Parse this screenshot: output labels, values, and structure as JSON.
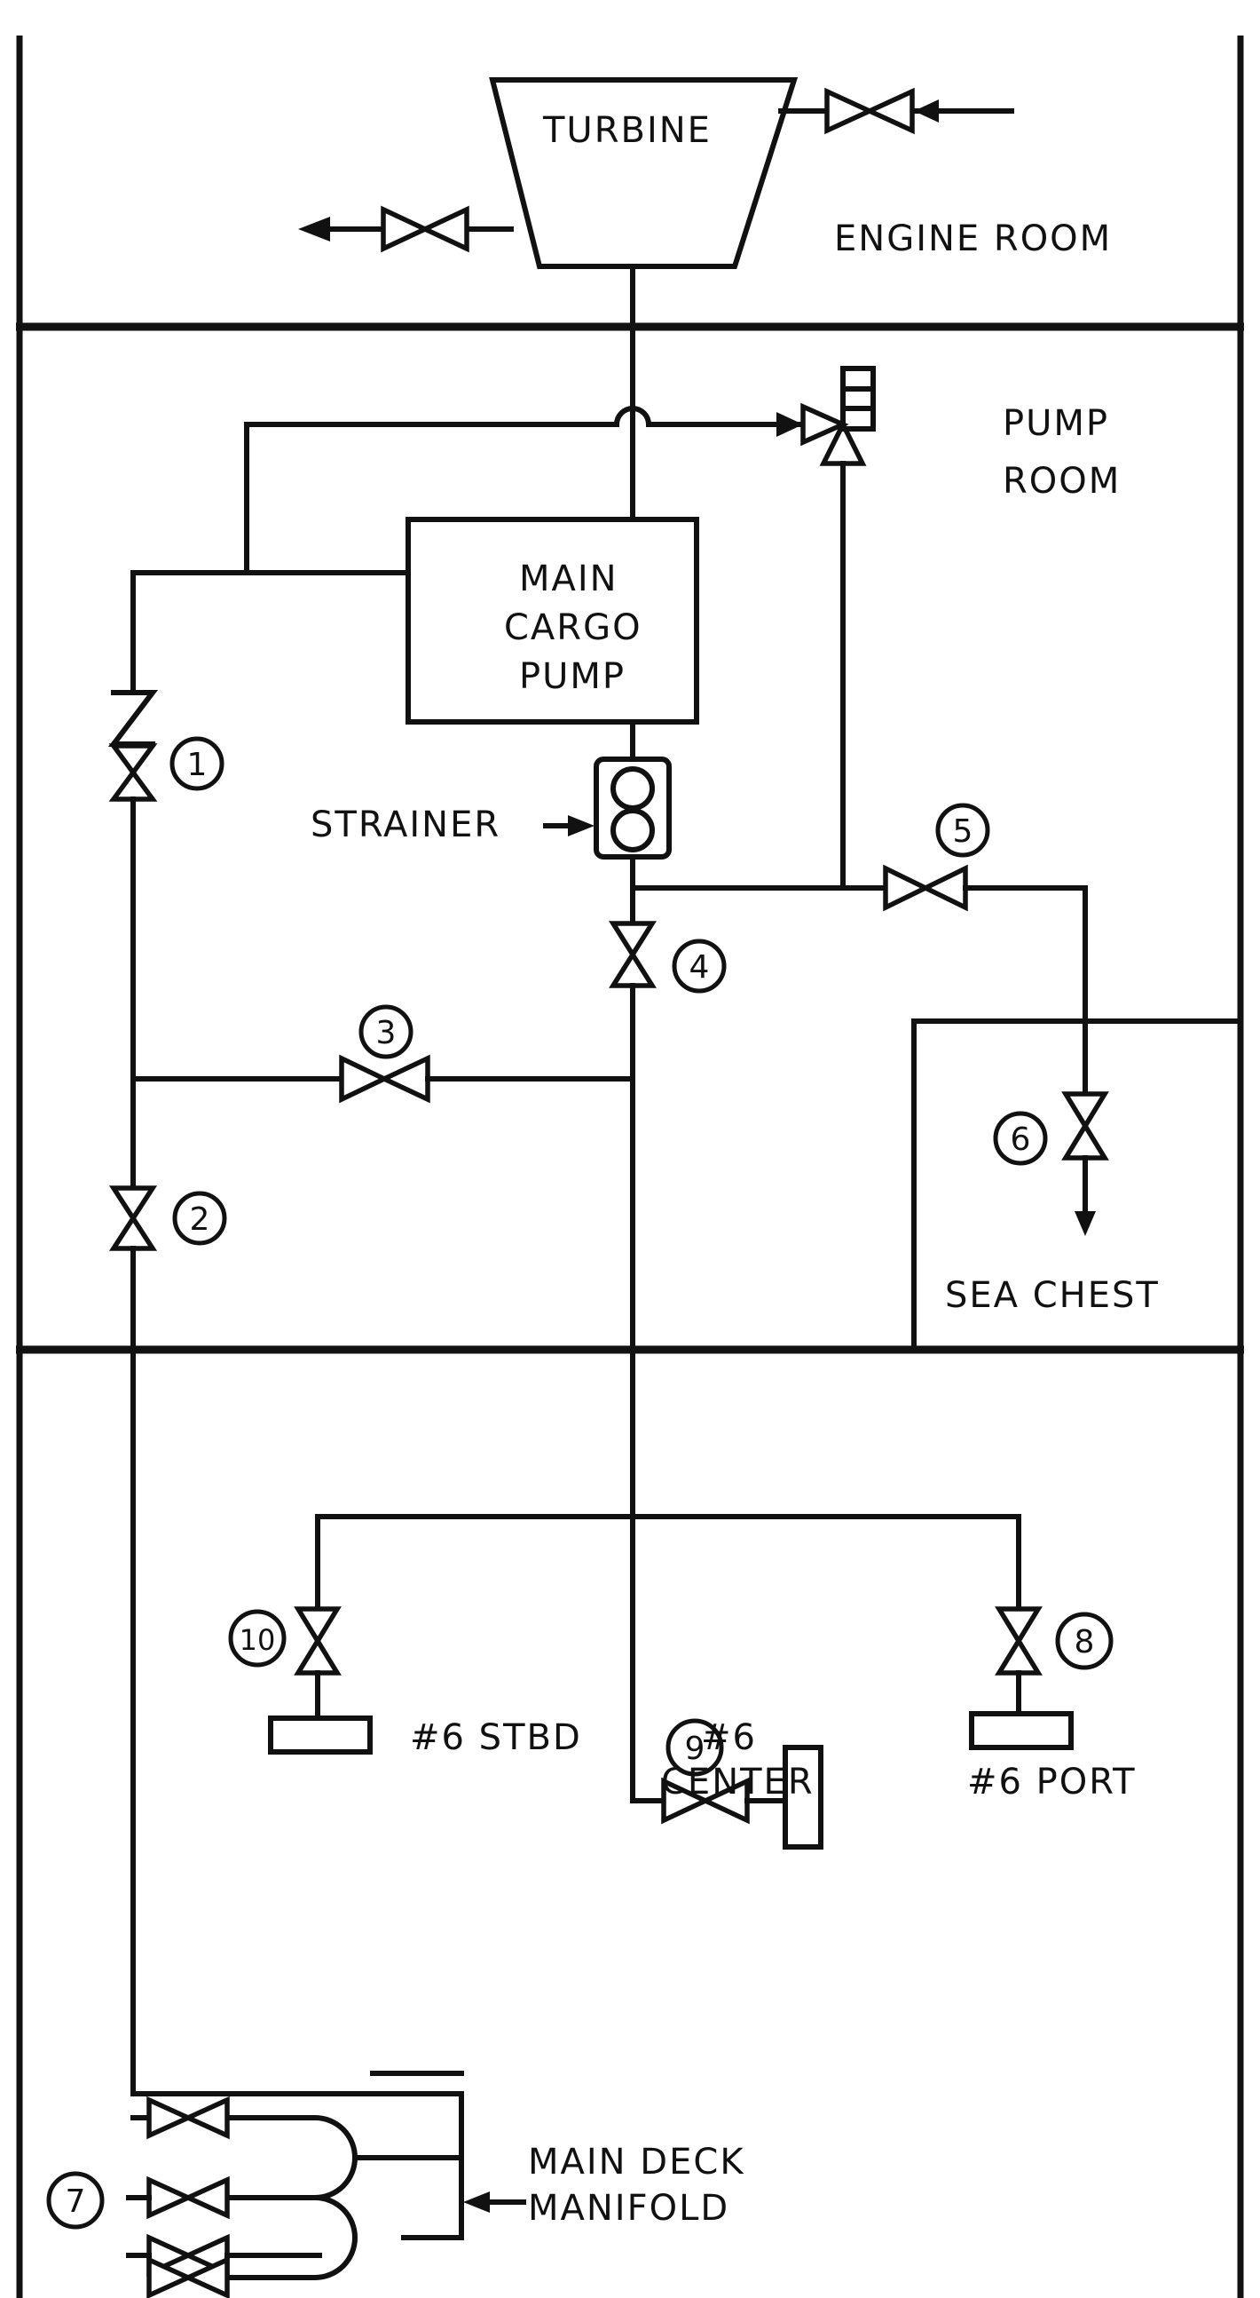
{
  "labels": {
    "turbine": "TURBINE",
    "engine_room": "ENGINE ROOM",
    "pump_room_1": "PUMP",
    "pump_room_2": "ROOM",
    "main_cargo_pump_1": "MAIN",
    "main_cargo_pump_2": "CARGO",
    "main_cargo_pump_3": "PUMP",
    "strainer": "STRAINER",
    "sea_chest": "SEA CHEST",
    "stbd": "#6 STBD",
    "center_1": "#6",
    "center_2": "CENTER",
    "port": "#6 PORT",
    "manifold_1": "MAIN DECK",
    "manifold_2": "MANIFOLD"
  },
  "valve_numbers": {
    "v1": "1",
    "v2": "2",
    "v3": "3",
    "v4": "4",
    "v5": "5",
    "v6": "6",
    "v7": "7",
    "v8": "8",
    "v9": "9",
    "v10": "10"
  }
}
